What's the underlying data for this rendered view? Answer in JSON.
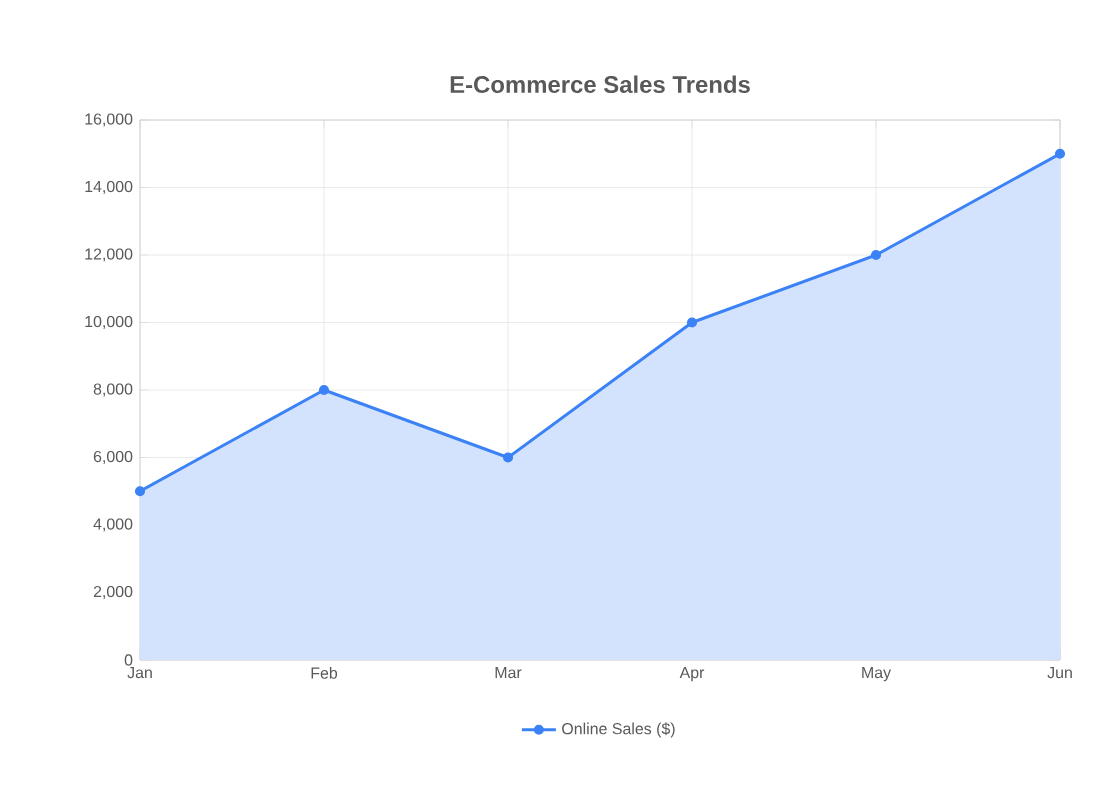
{
  "chart_data": {
    "type": "area",
    "title": "E-Commerce Sales Trends",
    "categories": [
      "Jan",
      "Feb",
      "Mar",
      "Apr",
      "May",
      "Jun"
    ],
    "series": [
      {
        "name": "Online Sales ($)",
        "color": "#3b82f6",
        "values": [
          5000,
          8000,
          6000,
          10000,
          12000,
          15000
        ]
      }
    ],
    "ylim": [
      0,
      16000
    ],
    "yticks": [
      {
        "value": 0,
        "label": "0"
      },
      {
        "value": 2000,
        "label": "2,000"
      },
      {
        "value": 4000,
        "label": "4,000"
      },
      {
        "value": 6000,
        "label": "6,000"
      },
      {
        "value": 8000,
        "label": "8,000"
      },
      {
        "value": 10000,
        "label": "10,000"
      },
      {
        "value": 12000,
        "label": "12,000"
      },
      {
        "value": 14000,
        "label": "14,000"
      },
      {
        "value": 16000,
        "label": "16,000"
      }
    ],
    "grid": true,
    "legend": "bottom",
    "marker": "circle",
    "line_style": "solid"
  }
}
